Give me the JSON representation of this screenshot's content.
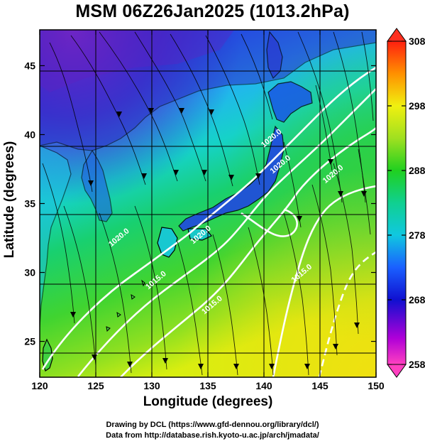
{
  "title": "MSM 06Z26Jan2025 (1013.2hPa)",
  "x_axis": {
    "label": "Longitude (degrees)",
    "ticks": [
      {
        "value": 120,
        "label": "120"
      },
      {
        "value": 125,
        "label": "125"
      },
      {
        "value": 130,
        "label": "130"
      },
      {
        "value": 135,
        "label": "135"
      },
      {
        "value": 140,
        "label": "140"
      },
      {
        "value": 145,
        "label": "145"
      },
      {
        "value": 150,
        "label": "150"
      }
    ],
    "range": [
      120,
      150
    ]
  },
  "y_axis": {
    "label": "Latitude (degrees)",
    "ticks": [
      {
        "value": 25,
        "label": "25"
      },
      {
        "value": 30,
        "label": "30"
      },
      {
        "value": 35,
        "label": "35"
      },
      {
        "value": 40,
        "label": "40"
      },
      {
        "value": 45,
        "label": "45"
      }
    ],
    "range": [
      22.4,
      47.6
    ]
  },
  "colorbar": {
    "ticks": [
      {
        "value": 258,
        "label": "258"
      },
      {
        "value": 268,
        "label": "268"
      },
      {
        "value": 278,
        "label": "278"
      },
      {
        "value": 288,
        "label": "288"
      },
      {
        "value": 298,
        "label": "298"
      },
      {
        "value": 308,
        "label": "308"
      }
    ],
    "range": [
      258,
      308
    ]
  },
  "contour_labels": [
    {
      "text": "1020.0",
      "lon": 140.8,
      "lat": 39.6
    },
    {
      "text": "1020.0",
      "lon": 141.6,
      "lat": 37.7
    },
    {
      "text": "1020.0",
      "lon": 146.3,
      "lat": 37.0
    },
    {
      "text": "1020.0",
      "lon": 127.2,
      "lat": 32.4
    },
    {
      "text": "1020.0",
      "lon": 134.5,
      "lat": 32.6
    },
    {
      "text": "1015.0",
      "lon": 130.5,
      "lat": 29.3
    },
    {
      "text": "1015.0",
      "lon": 143.5,
      "lat": 29.8
    },
    {
      "text": "1015.0",
      "lon": 135.5,
      "lat": 27.5
    }
  ],
  "map_features": [
    "temperature shading",
    "wind streamlines",
    "sea-level pressure contours",
    "coastlines",
    "lat-lon grid"
  ],
  "colors": {
    "contour": "#ffffff",
    "coastline": "#000000",
    "streamline": "#000000"
  },
  "credits": {
    "line1": "Drawing by DCL (https://www.gfd-dennou.org/library/dcl/)",
    "line2": "Data from http://database.rish.kyoto-u.ac.jp/arch/jmadata/"
  }
}
